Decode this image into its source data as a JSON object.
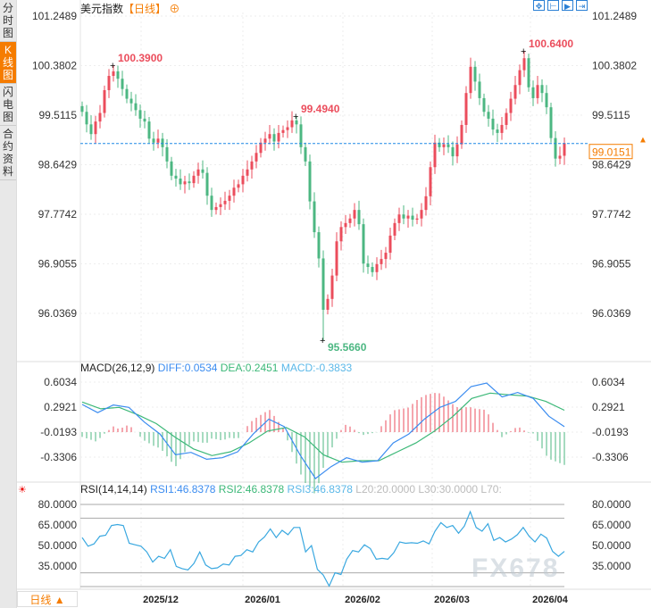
{
  "sidebar": {
    "tabs": [
      {
        "label": "分时图",
        "active": false
      },
      {
        "label": "K线图",
        "active": true
      },
      {
        "label": "闪电图",
        "active": false
      },
      {
        "label": "合约资料",
        "active": false
      }
    ]
  },
  "header": {
    "name": "美元指数",
    "period": "【日线】",
    "add_icon": "plus-circle-icon"
  },
  "toolbar": {
    "icons": [
      "crosshair-icon",
      "fit-range-icon",
      "play-range-icon",
      "jump-end-icon"
    ]
  },
  "period_button": "日线 ▲",
  "watermark": "FX678",
  "colors": {
    "up": "#eb4d5c",
    "down": "#4cb782",
    "diff": "#3b8cf0",
    "dea": "#3cb878",
    "rsi": "#3aa8e0",
    "accent": "#f57c00"
  },
  "chart_data": [
    {
      "type": "candlestick",
      "ylim": [
        95.5,
        101.25
      ],
      "yticks": [
        "101.2489",
        "100.3802",
        "99.5115",
        "98.6429",
        "97.7742",
        "96.9055",
        "96.0369"
      ],
      "xticks": [
        "2025/12",
        "2026/01",
        "2026/02",
        "2026/03",
        "2026/04"
      ],
      "current_price": "99.0151",
      "annotations": [
        {
          "label": "100.3900",
          "value": 100.39,
          "bar": 7,
          "kind": "high"
        },
        {
          "label": "99.4940",
          "value": 99.494,
          "bar": 48,
          "kind": "high"
        },
        {
          "label": "95.5660",
          "value": 95.566,
          "bar": 54,
          "kind": "low"
        },
        {
          "label": "100.6400",
          "value": 100.64,
          "bar": 99,
          "kind": "high"
        }
      ],
      "closes": [
        99.57,
        99.35,
        99.18,
        99.4,
        99.55,
        99.95,
        100.2,
        100.28,
        100.15,
        99.97,
        99.8,
        99.72,
        99.6,
        99.45,
        99.4,
        99.1,
        99.03,
        99.1,
        98.95,
        98.7,
        98.45,
        98.4,
        98.3,
        98.35,
        98.32,
        98.45,
        98.56,
        98.5,
        98.1,
        97.85,
        97.9,
        97.95,
        98.01,
        98.1,
        98.24,
        98.3,
        98.45,
        98.56,
        98.7,
        98.85,
        99.03,
        99.1,
        99.18,
        99.05,
        99.2,
        99.25,
        99.3,
        99.42,
        99.35,
        98.95,
        98.7,
        98.0,
        97.46,
        97.0,
        96.1,
        96.29,
        96.7,
        97.3,
        97.55,
        97.62,
        97.7,
        97.85,
        97.6,
        96.91,
        96.85,
        96.76,
        96.9,
        96.99,
        97.1,
        97.4,
        97.62,
        97.77,
        97.7,
        97.75,
        97.68,
        97.7,
        97.85,
        98.09,
        98.6,
        99.03,
        98.95,
        99.0,
        98.95,
        98.79,
        99.0,
        99.34,
        99.9,
        100.36,
        100.1,
        99.81,
        99.57,
        99.45,
        99.26,
        99.2,
        99.34,
        99.55,
        99.8,
        100.04,
        100.3,
        100.51,
        100.0,
        99.81,
        100.04,
        99.9,
        99.65,
        99.11,
        98.75,
        98.8,
        99.02
      ]
    },
    {
      "type": "line",
      "title": "MACD(26,12,9)",
      "legend": [
        {
          "label": "DIFF:0.0534"
        },
        {
          "label": "DEA:0.2451"
        },
        {
          "label": "MACD:-0.3833"
        }
      ],
      "yticks": [
        "0.6034",
        "0.2921",
        "-0.0193",
        "-0.3306"
      ],
      "diff": [
        0.326,
        0.223,
        0.319,
        0.289,
        0.105,
        -0.043,
        -0.301,
        -0.272,
        -0.357,
        -0.338,
        -0.264,
        -0.043,
        0.142,
        0.049,
        -0.301,
        -0.597,
        -0.449,
        -0.338,
        -0.394,
        -0.375,
        -0.154,
        -0.043,
        0.142,
        0.289,
        0.363,
        0.548,
        0.592,
        0.419,
        0.474,
        0.4,
        0.179,
        0.049
      ],
      "dea": [
        0.356,
        0.271,
        0.289,
        0.197,
        0.086,
        -0.08,
        -0.228,
        -0.312,
        -0.264,
        -0.154,
        -0.006,
        0.038,
        -0.08,
        -0.301,
        -0.394,
        -0.375,
        -0.375,
        -0.264,
        -0.154,
        -0.006,
        0.179,
        0.4,
        0.467,
        0.445,
        0.43,
        0.363,
        0.253
      ]
    },
    {
      "type": "line",
      "title": "RSI(14,14,14)",
      "legend": [
        {
          "label": "RSI1:46.8378"
        },
        {
          "label": "RSI2:46.8378"
        },
        {
          "label": "RSI3:46.8378"
        },
        {
          "label": "L20:20.0000"
        },
        {
          "label": "L30:30.0000"
        },
        {
          "label": "L70:"
        }
      ],
      "yticks": [
        "80.0000",
        "65.0000",
        "50.0000",
        "35.0000"
      ],
      "levels": [
        80,
        70,
        30,
        20
      ],
      "rsi": [
        55.8,
        49.5,
        51.2,
        56.8,
        57.5,
        64.6,
        65.3,
        64.6,
        51.6,
        50.5,
        49.5,
        45.3,
        37.9,
        42.1,
        40.6,
        46.9,
        34.7,
        33.1,
        32.2,
        36.8,
        45.3,
        35.8,
        33.1,
        33.7,
        36.4,
        35.8,
        42.1,
        42.7,
        46.9,
        45.3,
        52.6,
        56.2,
        62.1,
        55.8,
        61.1,
        57.9,
        63.2,
        63.2,
        45.3,
        49.9,
        32.6,
        28.4,
        20.4,
        30.1,
        28.8,
        40.0,
        46.3,
        45.3,
        50.5,
        47.8,
        40.0,
        40.6,
        40.0,
        44.8,
        52.6,
        51.6,
        52.0,
        51.6,
        53.3,
        51.2,
        60.4,
        66.7,
        63.2,
        64.6,
        58.9,
        64.2,
        74.7,
        63.2,
        60.4,
        65.9,
        53.7,
        55.8,
        52.6,
        54.7,
        57.9,
        63.2,
        56.8,
        52.6,
        58.3,
        55.4,
        45.7,
        42.1,
        45.7
      ]
    }
  ]
}
